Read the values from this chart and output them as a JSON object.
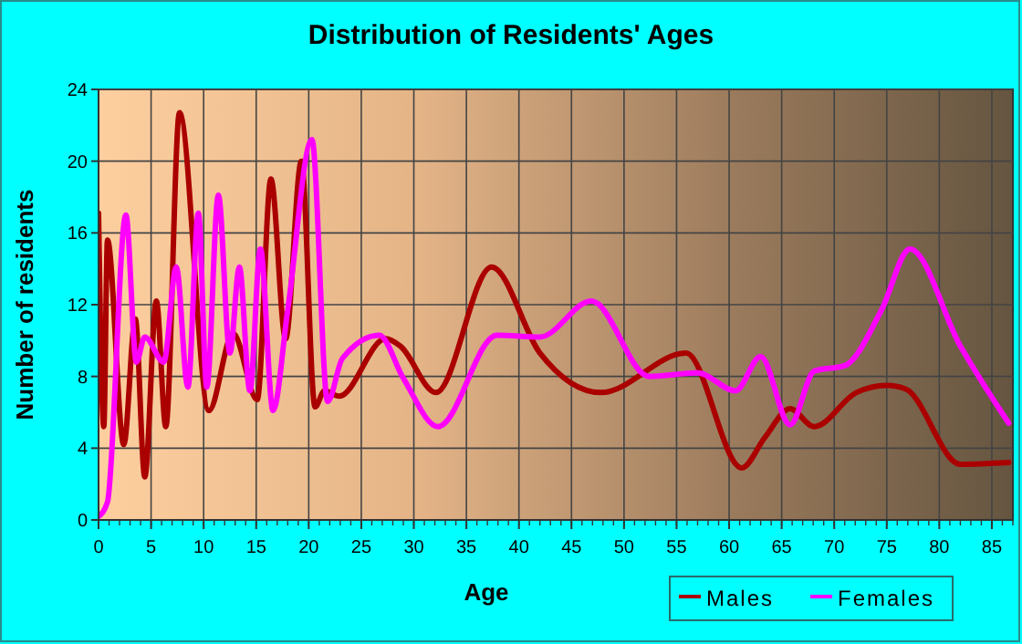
{
  "chart_data": {
    "type": "line",
    "title": "Distribution of Residents' Ages",
    "xlabel": "Age",
    "ylabel": "Number of residents",
    "xlim": [
      0,
      87
    ],
    "xticks": [
      0,
      5,
      10,
      15,
      20,
      25,
      30,
      35,
      40,
      45,
      50,
      55,
      60,
      65,
      70,
      75,
      80,
      85
    ],
    "ylim": [
      0,
      24
    ],
    "yticks": [
      0,
      4,
      8,
      12,
      16,
      20,
      24
    ],
    "grid": true,
    "legend": "bottom right",
    "marker": "none",
    "line_style": "solid",
    "series": [
      {
        "name": "Males",
        "color": "#aa0000",
        "x": [
          0,
          0.5,
          0.85,
          2.4,
          3.5,
          4.4,
          5.5,
          6.4,
          7.7,
          10.5,
          12.8,
          15.1,
          16.4,
          17.8,
          19.3,
          20.6,
          21.5,
          22.9,
          27.3,
          28.7,
          32.1,
          37.4,
          42,
          47.8,
          55.9,
          61.2,
          63.4,
          65.8,
          68.1,
          72.1,
          75,
          76.8,
          82,
          86.6
        ],
        "values": [
          17.1,
          5.2,
          15.6,
          4.2,
          11.2,
          2.4,
          12.2,
          5.2,
          22.7,
          6.1,
          10.4,
          6.7,
          19,
          10.1,
          20,
          6.3,
          7.2,
          6.9,
          10.1,
          9.7,
          7.1,
          14.1,
          9.3,
          7.1,
          9.3,
          2.9,
          4.6,
          6.2,
          5.2,
          7.1,
          7.5,
          7.3,
          3.1,
          3.2
        ]
      },
      {
        "name": "Females",
        "color": "#ff00ff",
        "x": [
          0,
          0.85,
          2.6,
          3.6,
          4.4,
          6.2,
          7.4,
          8.5,
          9.5,
          10.3,
          11.4,
          12.5,
          13.4,
          14.4,
          15.4,
          16.6,
          18,
          20.3,
          21.8,
          23.2,
          26.7,
          29,
          32.3,
          37.9,
          42,
          46.9,
          52.4,
          57,
          60.6,
          63,
          65.8,
          68.1,
          71,
          74.5,
          77.2,
          82,
          86.6
        ],
        "values": [
          0.2,
          1,
          17,
          8.8,
          10.2,
          8.8,
          14.1,
          7.4,
          17.1,
          7.4,
          18.1,
          9.3,
          14.1,
          7.2,
          15.1,
          6.1,
          11.7,
          21.2,
          6.6,
          9,
          10.3,
          7.9,
          5.2,
          10.3,
          10.2,
          12.2,
          8,
          8.2,
          7.2,
          9.1,
          5.3,
          8.3,
          8.6,
          11.7,
          15.1,
          9.7,
          5.4
        ]
      }
    ]
  }
}
